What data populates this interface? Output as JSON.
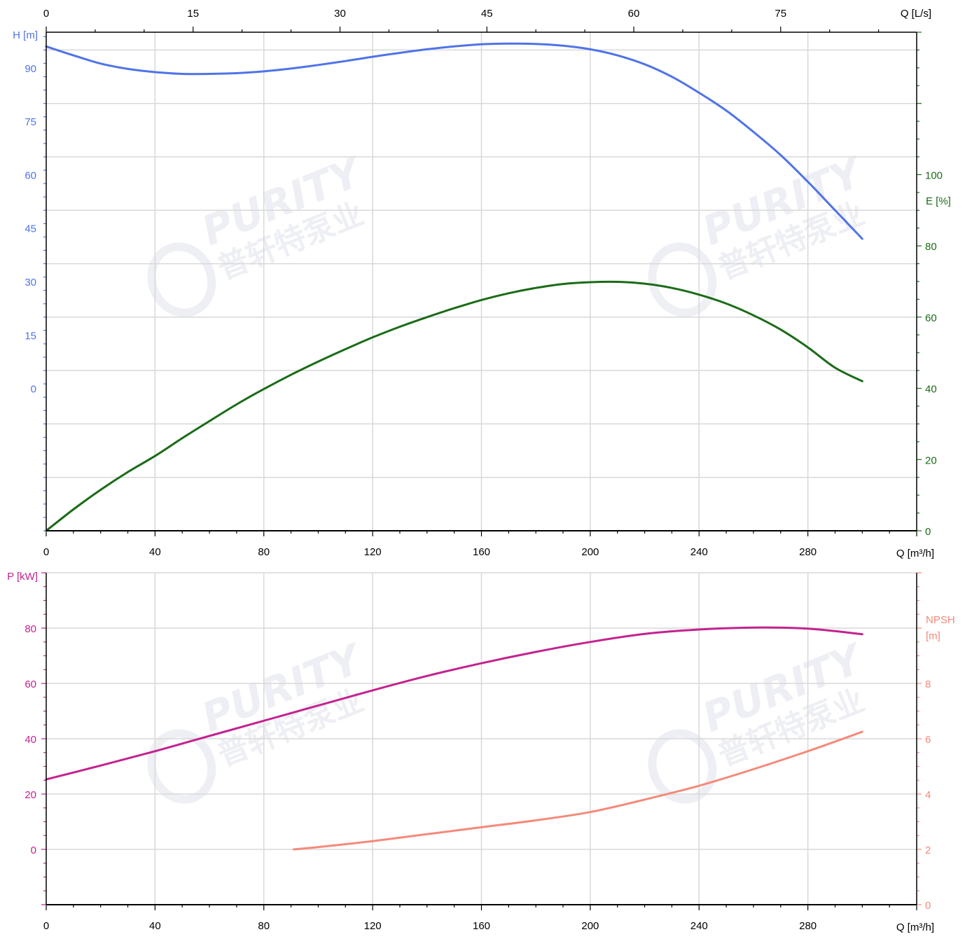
{
  "watermark": {
    "brand": "PURITY",
    "company": "普轩特泵业"
  },
  "colors": {
    "head": "#4f73e8",
    "efficiency": "#1a6b17",
    "power": "#c4228f",
    "npsh": "#f48a7a",
    "grid": "#d8d8d8",
    "axis": "#000000"
  },
  "chart_data": [
    {
      "type": "line",
      "x_axis": {
        "label": "Q [m³/h]",
        "range": [
          0,
          320
        ],
        "ticks": [
          0,
          40,
          80,
          120,
          160,
          200,
          240,
          280
        ]
      },
      "x2_axis": {
        "label": "Q [L/s]",
        "range": [
          0,
          88.89
        ],
        "ticks": [
          0,
          15,
          30,
          45,
          60,
          75
        ]
      },
      "y_left": {
        "label": "H [m]",
        "range": [
          -40,
          100
        ],
        "ticks": [
          0,
          15,
          30,
          45,
          60,
          75,
          90
        ]
      },
      "y_right": {
        "label": "E [%]",
        "range": [
          0,
          140
        ],
        "ticks": [
          0,
          20,
          40,
          60,
          80,
          100
        ]
      },
      "grid": true,
      "series": [
        {
          "name": "H [m]",
          "axis": "left",
          "x": [
            0,
            10,
            20,
            30,
            40,
            50,
            60,
            70,
            80,
            90,
            100,
            110,
            120,
            130,
            140,
            150,
            160,
            170,
            180,
            190,
            200,
            210,
            220,
            230,
            240,
            250,
            260,
            270,
            280,
            290,
            300
          ],
          "y": [
            96,
            93.5,
            91.2,
            89.7,
            88.8,
            88.3,
            88.3,
            88.5,
            89,
            89.8,
            90.8,
            91.9,
            93.1,
            94.2,
            95.2,
            96,
            96.6,
            96.8,
            96.7,
            96.2,
            95.2,
            93.5,
            91,
            87.5,
            83,
            78,
            72,
            65.5,
            58,
            50,
            42
          ]
        },
        {
          "name": "E [%]",
          "axis": "right",
          "x": [
            0,
            10,
            20,
            30,
            40,
            50,
            60,
            70,
            80,
            90,
            100,
            110,
            120,
            130,
            140,
            150,
            160,
            170,
            180,
            190,
            200,
            210,
            220,
            230,
            240,
            250,
            260,
            270,
            280,
            290,
            300
          ],
          "y": [
            0,
            6,
            11.5,
            16.5,
            21,
            26,
            30.8,
            35.5,
            39.8,
            43.8,
            47.5,
            51,
            54.3,
            57.3,
            60,
            62.5,
            64.8,
            66.7,
            68.2,
            69.3,
            69.8,
            69.9,
            69.4,
            68.2,
            66.3,
            63.8,
            60.5,
            56.5,
            51.5,
            45.8,
            42
          ]
        }
      ]
    },
    {
      "type": "line",
      "x_axis": {
        "label": "Q [m³/h]",
        "range": [
          0,
          320
        ],
        "ticks": [
          0,
          40,
          80,
          120,
          160,
          200,
          240,
          280
        ]
      },
      "y_left": {
        "label": "P [kW]",
        "range": [
          -20,
          100
        ],
        "ticks": [
          0,
          20,
          40,
          60,
          80
        ]
      },
      "y_right": {
        "label": "NPSH [m]",
        "range": [
          0,
          12
        ],
        "ticks": [
          0,
          2,
          4,
          6,
          8
        ]
      },
      "grid": true,
      "series": [
        {
          "name": "P [kW]",
          "axis": "left",
          "x": [
            0,
            20,
            40,
            60,
            80,
            100,
            120,
            140,
            160,
            180,
            200,
            220,
            240,
            260,
            280,
            300
          ],
          "y": [
            25.3,
            30.3,
            35.5,
            41,
            46.5,
            52,
            57.5,
            62.7,
            67.3,
            71.4,
            75,
            77.9,
            79.5,
            80.2,
            79.8,
            77.8
          ]
        },
        {
          "name": "NPSH [m]",
          "axis": "right",
          "x": [
            91,
            100,
            120,
            140,
            160,
            180,
            200,
            220,
            240,
            260,
            280,
            300
          ],
          "y": [
            2.0,
            2.08,
            2.3,
            2.55,
            2.8,
            3.05,
            3.35,
            3.8,
            4.3,
            4.9,
            5.55,
            6.25
          ]
        }
      ]
    }
  ]
}
